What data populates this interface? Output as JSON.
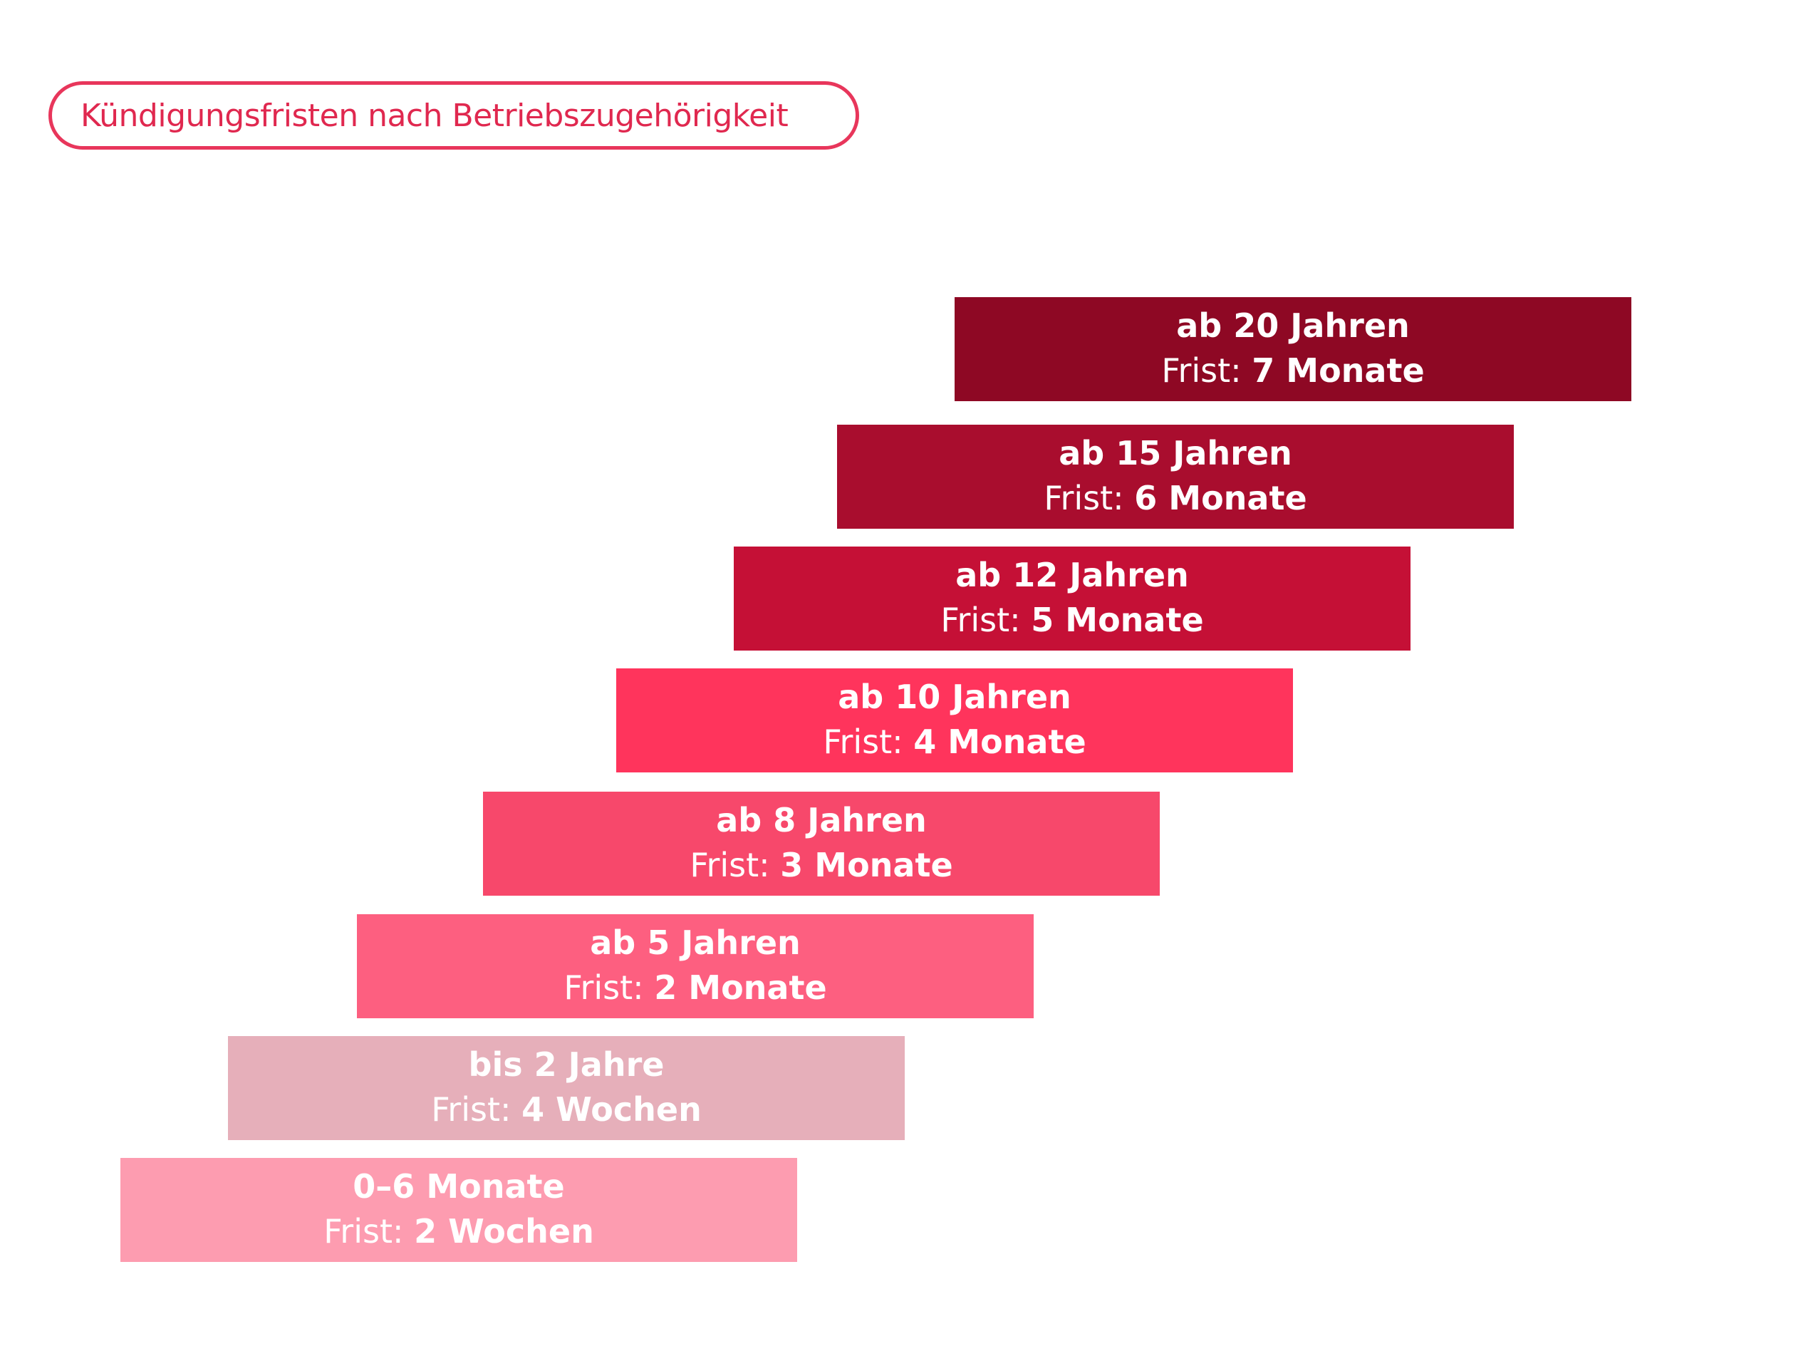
{
  "title": "Kündigungsfristen nach Betriebszugehörigkeit",
  "frist_prefix": "Frist:",
  "steps": [
    {
      "heading": "ab 20 Jahren",
      "value": "7 Monate",
      "color": "#8e0824"
    },
    {
      "heading": "ab 15 Jahren",
      "value": "6 Monate",
      "color": "#a90d2e"
    },
    {
      "heading": "ab 12 Jahren",
      "value": "5 Monate",
      "color": "#c51036"
    },
    {
      "heading": "ab 10 Jahren",
      "value": "4 Monate",
      "color": "#ff345c"
    },
    {
      "heading": "ab 8 Jahren",
      "value": "3 Monate",
      "color": "#f7486b"
    },
    {
      "heading": "ab 5 Jahren",
      "value": "2 Monate",
      "color": "#fd5f80"
    },
    {
      "heading": "bis 2 Jahre",
      "value": "4 Wochen",
      "color": "#e6afba"
    },
    {
      "heading": "0–6 Monate",
      "value": "2 Wochen",
      "color": "#fd9cb0"
    }
  ]
}
